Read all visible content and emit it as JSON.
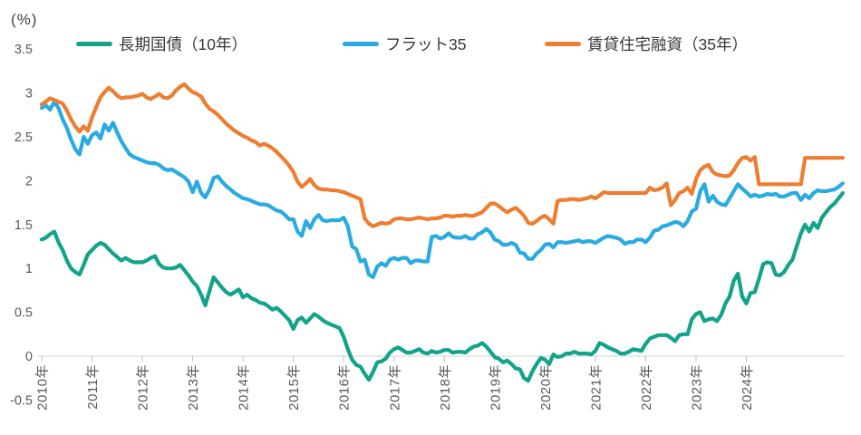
{
  "legend": [
    {
      "id": "jgb10y",
      "label": "長期国債（10年）",
      "color": "#12A38A"
    },
    {
      "id": "flat35",
      "label": "フラット35",
      "color": "#29ABE2"
    },
    {
      "id": "rental35",
      "label": "賃貸住宅融資（35年）",
      "color": "#ED7D31"
    }
  ],
  "chart_data": {
    "type": "line",
    "unit_label": "(%)",
    "title": "",
    "xlabel": "",
    "ylabel": "(%)",
    "ylim": [
      -0.5,
      3.5
    ],
    "grid": "zero-line-only",
    "legend_position": "top",
    "x_frequency": "monthly",
    "x_range": "2010-01 to 2025-12",
    "x_tick_labels": [
      "2010年",
      "2011年",
      "2012年",
      "2013年",
      "2014年",
      "2015年",
      "2016年",
      "2017年",
      "2018年",
      "2019年",
      "2020年",
      "2021年",
      "2022年",
      "2023年",
      "2024年"
    ],
    "y_ticks": [
      {
        "label": "3.5",
        "value": 3.5
      },
      {
        "label": "3",
        "value": 3.0
      },
      {
        "label": "2.5",
        "value": 2.5
      },
      {
        "label": "2",
        "value": 2.0
      },
      {
        "label": "1.5",
        "value": 1.5
      },
      {
        "label": "1",
        "value": 1.0
      },
      {
        "label": "0.5",
        "value": 0.5
      },
      {
        "label": "0",
        "value": 0.0
      },
      {
        "label": "-0.5",
        "value": -0.5
      }
    ],
    "series": [
      {
        "id": "jgb10y",
        "name": "長期国債（10年）",
        "color": "#12A38A",
        "values": [
          1.33,
          1.35,
          1.39,
          1.42,
          1.3,
          1.21,
          1.09,
          1.0,
          0.96,
          0.93,
          1.04,
          1.16,
          1.21,
          1.26,
          1.29,
          1.27,
          1.22,
          1.17,
          1.13,
          1.09,
          1.12,
          1.09,
          1.07,
          1.07,
          1.07,
          1.09,
          1.12,
          1.14,
          1.05,
          1.01,
          1.0,
          1.0,
          1.01,
          1.04,
          0.98,
          0.92,
          0.85,
          0.8,
          0.7,
          0.58,
          0.74,
          0.9,
          0.84,
          0.78,
          0.73,
          0.7,
          0.73,
          0.76,
          0.67,
          0.7,
          0.66,
          0.64,
          0.61,
          0.6,
          0.57,
          0.53,
          0.55,
          0.51,
          0.46,
          0.41,
          0.31,
          0.41,
          0.44,
          0.38,
          0.43,
          0.48,
          0.45,
          0.41,
          0.38,
          0.36,
          0.34,
          0.32,
          0.22,
          0.08,
          -0.04,
          -0.1,
          -0.12,
          -0.2,
          -0.27,
          -0.18,
          -0.07,
          -0.06,
          -0.03,
          0.04,
          0.08,
          0.1,
          0.07,
          0.04,
          0.04,
          0.06,
          0.08,
          0.04,
          0.03,
          0.06,
          0.04,
          0.05,
          0.07,
          0.07,
          0.04,
          0.05,
          0.05,
          0.04,
          0.08,
          0.11,
          0.12,
          0.15,
          0.11,
          0.05,
          -0.01,
          -0.03,
          -0.07,
          -0.05,
          -0.09,
          -0.14,
          -0.15,
          -0.25,
          -0.28,
          -0.17,
          -0.09,
          -0.02,
          -0.04,
          -0.09,
          0.02,
          -0.01,
          0.0,
          0.03,
          0.03,
          0.05,
          0.03,
          0.03,
          0.03,
          0.02,
          0.06,
          0.15,
          0.13,
          0.1,
          0.08,
          0.06,
          0.03,
          0.03,
          0.05,
          0.08,
          0.07,
          0.06,
          0.14,
          0.2,
          0.22,
          0.24,
          0.24,
          0.24,
          0.21,
          0.17,
          0.24,
          0.25,
          0.25,
          0.42,
          0.48,
          0.5,
          0.4,
          0.42,
          0.43,
          0.4,
          0.47,
          0.6,
          0.68,
          0.86,
          0.94,
          0.68,
          0.6,
          0.72,
          0.73,
          0.88,
          1.05,
          1.07,
          1.06,
          0.93,
          0.92,
          0.96,
          1.04,
          1.1,
          1.25,
          1.4,
          1.5,
          1.42,
          1.52,
          1.46,
          1.58,
          1.64,
          1.7,
          1.74,
          1.8,
          1.86
        ]
      },
      {
        "id": "flat35",
        "name": "フラット35",
        "color": "#29ABE2",
        "values": [
          2.83,
          2.86,
          2.81,
          2.9,
          2.83,
          2.7,
          2.6,
          2.47,
          2.36,
          2.3,
          2.5,
          2.42,
          2.52,
          2.55,
          2.48,
          2.64,
          2.57,
          2.66,
          2.55,
          2.45,
          2.37,
          2.3,
          2.27,
          2.25,
          2.23,
          2.21,
          2.2,
          2.2,
          2.18,
          2.14,
          2.12,
          2.13,
          2.1,
          2.07,
          2.04,
          1.99,
          1.87,
          1.99,
          1.86,
          1.81,
          1.9,
          2.03,
          2.05,
          1.99,
          1.94,
          1.9,
          1.86,
          1.83,
          1.8,
          1.79,
          1.77,
          1.75,
          1.73,
          1.73,
          1.72,
          1.69,
          1.66,
          1.65,
          1.61,
          1.56,
          1.56,
          1.42,
          1.37,
          1.54,
          1.46,
          1.56,
          1.61,
          1.55,
          1.54,
          1.55,
          1.55,
          1.55,
          1.58,
          1.48,
          1.25,
          1.22,
          1.08,
          1.1,
          0.93,
          0.9,
          1.02,
          1.06,
          1.03,
          1.1,
          1.12,
          1.1,
          1.12,
          1.12,
          1.06,
          1.09,
          1.09,
          1.08,
          1.08,
          1.36,
          1.37,
          1.34,
          1.36,
          1.4,
          1.36,
          1.35,
          1.35,
          1.37,
          1.34,
          1.34,
          1.39,
          1.41,
          1.45,
          1.41,
          1.33,
          1.31,
          1.27,
          1.27,
          1.29,
          1.27,
          1.18,
          1.17,
          1.11,
          1.11,
          1.17,
          1.21,
          1.27,
          1.28,
          1.24,
          1.3,
          1.3,
          1.29,
          1.3,
          1.31,
          1.32,
          1.3,
          1.31,
          1.31,
          1.29,
          1.32,
          1.35,
          1.37,
          1.36,
          1.35,
          1.33,
          1.28,
          1.3,
          1.3,
          1.33,
          1.33,
          1.3,
          1.35,
          1.43,
          1.44,
          1.48,
          1.49,
          1.51,
          1.53,
          1.52,
          1.48,
          1.54,
          1.65,
          1.68,
          1.88,
          1.96,
          1.76,
          1.83,
          1.76,
          1.73,
          1.72,
          1.8,
          1.88,
          1.96,
          1.91,
          1.87,
          1.82,
          1.84,
          1.82,
          1.83,
          1.85,
          1.84,
          1.85,
          1.82,
          1.82,
          1.84,
          1.86,
          1.86,
          1.78,
          1.84,
          1.8,
          1.86,
          1.89,
          1.88,
          1.88,
          1.89,
          1.9,
          1.93,
          1.97
        ]
      },
      {
        "id": "rental35",
        "name": "賃貸住宅融資（35年）",
        "color": "#ED7D31",
        "values": [
          2.87,
          2.9,
          2.94,
          2.92,
          2.9,
          2.88,
          2.8,
          2.7,
          2.62,
          2.56,
          2.62,
          2.57,
          2.72,
          2.84,
          2.95,
          3.01,
          3.06,
          3.02,
          2.97,
          2.94,
          2.95,
          2.95,
          2.96,
          2.97,
          2.99,
          2.95,
          2.93,
          2.96,
          2.99,
          2.95,
          2.94,
          2.97,
          3.03,
          3.07,
          3.1,
          3.05,
          3.01,
          2.99,
          2.96,
          2.88,
          2.82,
          2.79,
          2.75,
          2.7,
          2.65,
          2.61,
          2.57,
          2.54,
          2.51,
          2.49,
          2.46,
          2.44,
          2.4,
          2.42,
          2.4,
          2.37,
          2.33,
          2.28,
          2.23,
          2.17,
          2.1,
          1.99,
          1.93,
          1.97,
          2.02,
          1.95,
          1.91,
          1.9,
          1.9,
          1.89,
          1.89,
          1.88,
          1.87,
          1.85,
          1.83,
          1.81,
          1.79,
          1.57,
          1.51,
          1.48,
          1.5,
          1.52,
          1.51,
          1.52,
          1.56,
          1.57,
          1.57,
          1.56,
          1.56,
          1.57,
          1.58,
          1.57,
          1.56,
          1.57,
          1.57,
          1.58,
          1.6,
          1.6,
          1.59,
          1.6,
          1.6,
          1.61,
          1.6,
          1.6,
          1.62,
          1.64,
          1.69,
          1.74,
          1.74,
          1.71,
          1.67,
          1.64,
          1.67,
          1.69,
          1.65,
          1.6,
          1.52,
          1.51,
          1.54,
          1.58,
          1.6,
          1.56,
          1.51,
          1.77,
          1.78,
          1.78,
          1.79,
          1.79,
          1.78,
          1.79,
          1.8,
          1.82,
          1.8,
          1.83,
          1.87,
          1.86,
          1.86,
          1.86,
          1.86,
          1.86,
          1.86,
          1.86,
          1.86,
          1.86,
          1.86,
          1.92,
          1.89,
          1.9,
          1.92,
          1.97,
          1.72,
          1.78,
          1.86,
          1.88,
          1.92,
          1.85,
          2.02,
          2.12,
          2.16,
          2.18,
          2.1,
          2.07,
          2.06,
          2.05,
          2.06,
          2.12,
          2.2,
          2.26,
          2.27,
          2.23,
          2.27,
          1.96,
          1.96,
          1.96,
          1.96,
          1.96,
          1.96,
          1.96,
          1.96,
          1.96,
          1.96,
          1.96,
          2.26,
          2.26,
          2.26,
          2.26,
          2.26,
          2.26,
          2.26,
          2.26,
          2.26,
          2.26
        ]
      }
    ]
  }
}
